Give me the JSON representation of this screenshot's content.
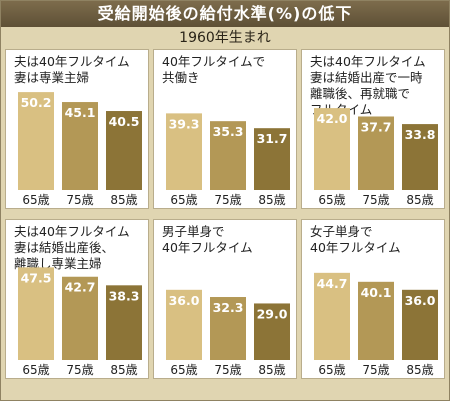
{
  "title": "受給開始後の給付水準(%)の低下",
  "subtitle": "1960年生まれ",
  "colors": {
    "bar_light": "#d9c082",
    "bar_mid": "#b39856",
    "bar_dark": "#8c7437",
    "frame": "#e0d5b1",
    "title_bg": "#6a5b3f"
  },
  "chart_data": [
    {
      "type": "bar",
      "title": "夫は40年フルタイム\n妻は専業主婦",
      "categories": [
        "65歳",
        "75歳",
        "85歳"
      ],
      "values": [
        50.2,
        45.1,
        40.5
      ]
    },
    {
      "type": "bar",
      "title": "40年フルタイムで\n共働き",
      "categories": [
        "65歳",
        "75歳",
        "85歳"
      ],
      "values": [
        39.3,
        35.3,
        31.7
      ]
    },
    {
      "type": "bar",
      "title": "夫は40年フルタイム\n妻は結婚出産で一時\n離職後、再就職で\nフルタイム",
      "categories": [
        "65歳",
        "75歳",
        "85歳"
      ],
      "values": [
        42.0,
        37.7,
        33.8
      ]
    },
    {
      "type": "bar",
      "title": "夫は40年フルタイム\n妻は結婚出産後、\n離職し専業主婦",
      "categories": [
        "65歳",
        "75歳",
        "85歳"
      ],
      "values": [
        47.5,
        42.7,
        38.3
      ]
    },
    {
      "type": "bar",
      "title": "男子単身で\n40年フルタイム",
      "categories": [
        "65歳",
        "75歳",
        "85歳"
      ],
      "values": [
        36.0,
        32.3,
        29.0
      ]
    },
    {
      "type": "bar",
      "title": "女子単身で\n40年フルタイム",
      "categories": [
        "65歳",
        "75歳",
        "85歳"
      ],
      "values": [
        44.7,
        40.1,
        36.0
      ]
    }
  ]
}
